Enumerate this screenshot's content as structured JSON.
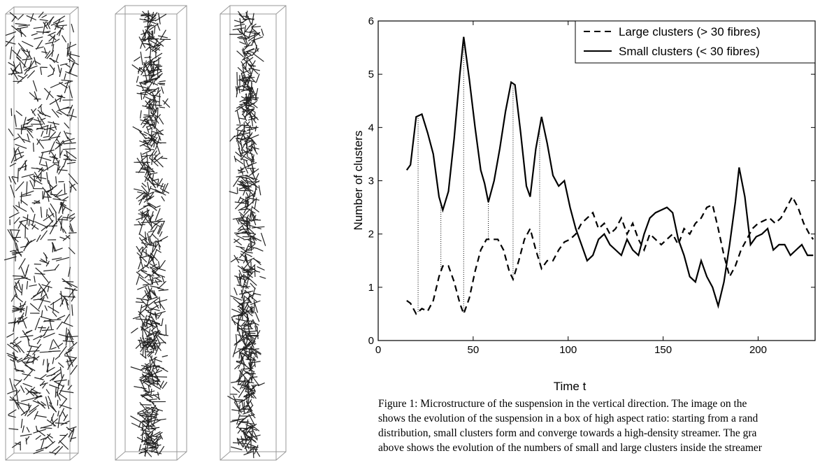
{
  "chart_data": {
    "type": "line",
    "xlabel": "Time t",
    "ylabel": "Number of clusters",
    "xlim": [
      0,
      230
    ],
    "ylim": [
      0,
      6
    ],
    "xticks": [
      0,
      50,
      100,
      150,
      200
    ],
    "yticks": [
      0,
      1,
      2,
      3,
      4,
      5,
      6
    ],
    "legend": "upper right",
    "dotted_x": [
      21,
      33,
      45,
      58,
      71,
      85
    ],
    "series": [
      {
        "name": "Large clusters (> 30 fibres)",
        "color": "#000000",
        "style": "dashed",
        "x": [
          15,
          17,
          20,
          23,
          26,
          29,
          32,
          34,
          37,
          40,
          43,
          45,
          48,
          51,
          54,
          57,
          60,
          63,
          66,
          69,
          71,
          74,
          77,
          80,
          83,
          86,
          89,
          92,
          95,
          98,
          101,
          104,
          107,
          110,
          113,
          116,
          119,
          122,
          125,
          128,
          131,
          134,
          137,
          140,
          143,
          146,
          149,
          152,
          155,
          158,
          161,
          164,
          167,
          170,
          173,
          176,
          179,
          182,
          185,
          188,
          191,
          194,
          197,
          200,
          203,
          206,
          209,
          212,
          215,
          218,
          221,
          224,
          227,
          229
        ],
        "values": [
          0.75,
          0.7,
          0.5,
          0.6,
          0.55,
          0.75,
          1.2,
          1.4,
          1.4,
          1.1,
          0.7,
          0.5,
          0.8,
          1.3,
          1.7,
          1.9,
          1.9,
          1.9,
          1.7,
          1.3,
          1.15,
          1.5,
          1.9,
          2.1,
          1.7,
          1.35,
          1.5,
          1.5,
          1.7,
          1.85,
          1.9,
          2.0,
          2.2,
          2.3,
          2.4,
          2.1,
          2.2,
          2.0,
          2.1,
          2.3,
          2.0,
          2.2,
          1.9,
          1.7,
          2.0,
          1.9,
          1.8,
          1.9,
          2.0,
          1.8,
          2.1,
          2.0,
          2.2,
          2.3,
          2.5,
          2.55,
          2.1,
          1.6,
          1.2,
          1.4,
          1.7,
          1.9,
          2.1,
          2.2,
          2.25,
          2.3,
          2.2,
          2.3,
          2.5,
          2.7,
          2.5,
          2.2,
          2.0,
          1.9
        ]
      },
      {
        "name": "Small clusters (< 30 fibres)",
        "color": "#000000",
        "style": "solid",
        "x": [
          15,
          17,
          20,
          23,
          26,
          29,
          32,
          34,
          37,
          40,
          43,
          45,
          48,
          51,
          54,
          56,
          58,
          61,
          64,
          67,
          70,
          72,
          75,
          78,
          80,
          83,
          86,
          89,
          92,
          95,
          98,
          101,
          104,
          107,
          110,
          113,
          116,
          119,
          122,
          125,
          128,
          131,
          134,
          137,
          140,
          143,
          146,
          149,
          152,
          155,
          158,
          161,
          164,
          167,
          170,
          173,
          176,
          179,
          182,
          185,
          188,
          190,
          193,
          196,
          199,
          202,
          205,
          208,
          211,
          214,
          217,
          220,
          223,
          226,
          229
        ],
        "values": [
          3.2,
          3.3,
          4.2,
          4.25,
          3.9,
          3.5,
          2.7,
          2.45,
          2.8,
          3.8,
          5.0,
          5.7,
          4.9,
          4.0,
          3.2,
          2.95,
          2.6,
          3.0,
          3.6,
          4.3,
          4.85,
          4.8,
          3.9,
          2.9,
          2.7,
          3.6,
          4.2,
          3.7,
          3.1,
          2.9,
          3.0,
          2.5,
          2.1,
          1.8,
          1.5,
          1.6,
          1.9,
          2.0,
          1.8,
          1.7,
          1.6,
          1.9,
          1.7,
          1.6,
          2.0,
          2.3,
          2.4,
          2.45,
          2.5,
          2.4,
          1.9,
          1.6,
          1.2,
          1.1,
          1.5,
          1.2,
          1.0,
          0.65,
          1.1,
          1.8,
          2.6,
          3.25,
          2.7,
          1.8,
          1.95,
          2.0,
          2.1,
          1.7,
          1.8,
          1.8,
          1.6,
          1.7,
          1.8,
          1.6,
          1.6
        ]
      }
    ]
  },
  "caption": {
    "lines": [
      "Figure 1:  Microstructure of the suspension in the vertical direction. The image on the",
      "shows the evolution of the suspension in a box of high aspect ratio: starting from a rand",
      "distribution, small clusters form and converge towards a high-density streamer. The gra",
      "above shows the evolution of the numbers of small and large clusters inside the streamer"
    ]
  }
}
